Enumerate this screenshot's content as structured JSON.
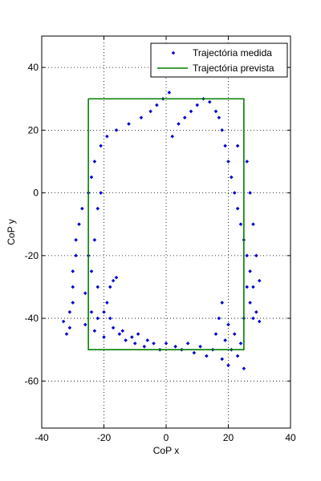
{
  "chart_data": {
    "type": "scatter",
    "xlabel": "CoP x",
    "ylabel": "CoP y",
    "xlim": [
      -40,
      40
    ],
    "ylim": [
      -75,
      50
    ],
    "xticks": [
      -40,
      -20,
      0,
      20,
      40
    ],
    "yticks": [
      -60,
      -40,
      -20,
      0,
      20,
      40
    ],
    "grid": true,
    "legend_position": "top-right",
    "series": [
      {
        "name": "Trajectória medida",
        "type": "scatter",
        "color": "#0000cc",
        "marker": "diamond",
        "points": [
          [
            -33,
            -41
          ],
          [
            -32,
            -45
          ],
          [
            -31,
            -43
          ],
          [
            -31,
            -38
          ],
          [
            -30,
            -35
          ],
          [
            -30,
            -30
          ],
          [
            -30,
            -25
          ],
          [
            -29,
            -20
          ],
          [
            -29,
            -15
          ],
          [
            -28,
            -10
          ],
          [
            -27,
            -5
          ],
          [
            -26,
            -32
          ],
          [
            -26,
            -42
          ],
          [
            -25,
            -20
          ],
          [
            -25,
            0
          ],
          [
            -24,
            -38
          ],
          [
            -24,
            -25
          ],
          [
            -24,
            5
          ],
          [
            -23,
            -44
          ],
          [
            -23,
            -15
          ],
          [
            -23,
            10
          ],
          [
            -22,
            -40
          ],
          [
            -22,
            -30
          ],
          [
            -22,
            -5
          ],
          [
            -21,
            15
          ],
          [
            -21,
            0
          ],
          [
            -20,
            -46
          ],
          [
            -20,
            -38
          ],
          [
            -19,
            -35
          ],
          [
            -19,
            18
          ],
          [
            -18,
            -40
          ],
          [
            -18,
            -30
          ],
          [
            -17,
            -28
          ],
          [
            -17,
            -43
          ],
          [
            -16,
            -27
          ],
          [
            -16,
            20
          ],
          [
            -15,
            -45
          ],
          [
            -14,
            -44
          ],
          [
            -13,
            -47
          ],
          [
            -12,
            22
          ],
          [
            -11,
            -46
          ],
          [
            -10,
            -48
          ],
          [
            -9,
            -45
          ],
          [
            -8,
            24
          ],
          [
            -7,
            -49
          ],
          [
            -6,
            -47
          ],
          [
            -5,
            26
          ],
          [
            -4,
            -48
          ],
          [
            -3,
            28
          ],
          [
            -2,
            -50
          ],
          [
            -1,
            30
          ],
          [
            0,
            -48
          ],
          [
            1,
            32
          ],
          [
            2,
            18
          ],
          [
            3,
            -49
          ],
          [
            4,
            22
          ],
          [
            5,
            -50
          ],
          [
            6,
            24
          ],
          [
            7,
            -48
          ],
          [
            8,
            26
          ],
          [
            9,
            -51
          ],
          [
            10,
            28
          ],
          [
            11,
            -49
          ],
          [
            12,
            30
          ],
          [
            13,
            -52
          ],
          [
            14,
            29
          ],
          [
            15,
            -50
          ],
          [
            16,
            -45
          ],
          [
            16,
            26
          ],
          [
            17,
            -40
          ],
          [
            17,
            24
          ],
          [
            18,
            -53
          ],
          [
            18,
            -35
          ],
          [
            18,
            20
          ],
          [
            19,
            -47
          ],
          [
            19,
            15
          ],
          [
            20,
            -55
          ],
          [
            20,
            -42
          ],
          [
            20,
            10
          ],
          [
            21,
            -50
          ],
          [
            21,
            5
          ],
          [
            22,
            -45
          ],
          [
            22,
            0
          ],
          [
            23,
            -52
          ],
          [
            23,
            -5
          ],
          [
            23,
            15
          ],
          [
            24,
            -48
          ],
          [
            24,
            -10
          ],
          [
            25,
            -56
          ],
          [
            25,
            -40
          ],
          [
            25,
            -15
          ],
          [
            26,
            -30
          ],
          [
            26,
            -20
          ],
          [
            26,
            10
          ],
          [
            27,
            -35
          ],
          [
            27,
            -25
          ],
          [
            27,
            0
          ],
          [
            28,
            -40
          ],
          [
            28,
            -30
          ],
          [
            28,
            -10
          ],
          [
            29,
            -38
          ],
          [
            29,
            -20
          ],
          [
            30,
            -41
          ],
          [
            30,
            -28
          ]
        ]
      },
      {
        "name": "Trajectória prevista",
        "type": "line",
        "color": "#007f00",
        "x": [
          -25,
          25,
          25,
          -25,
          -25
        ],
        "y": [
          30,
          30,
          -50,
          -50,
          30
        ]
      }
    ]
  }
}
